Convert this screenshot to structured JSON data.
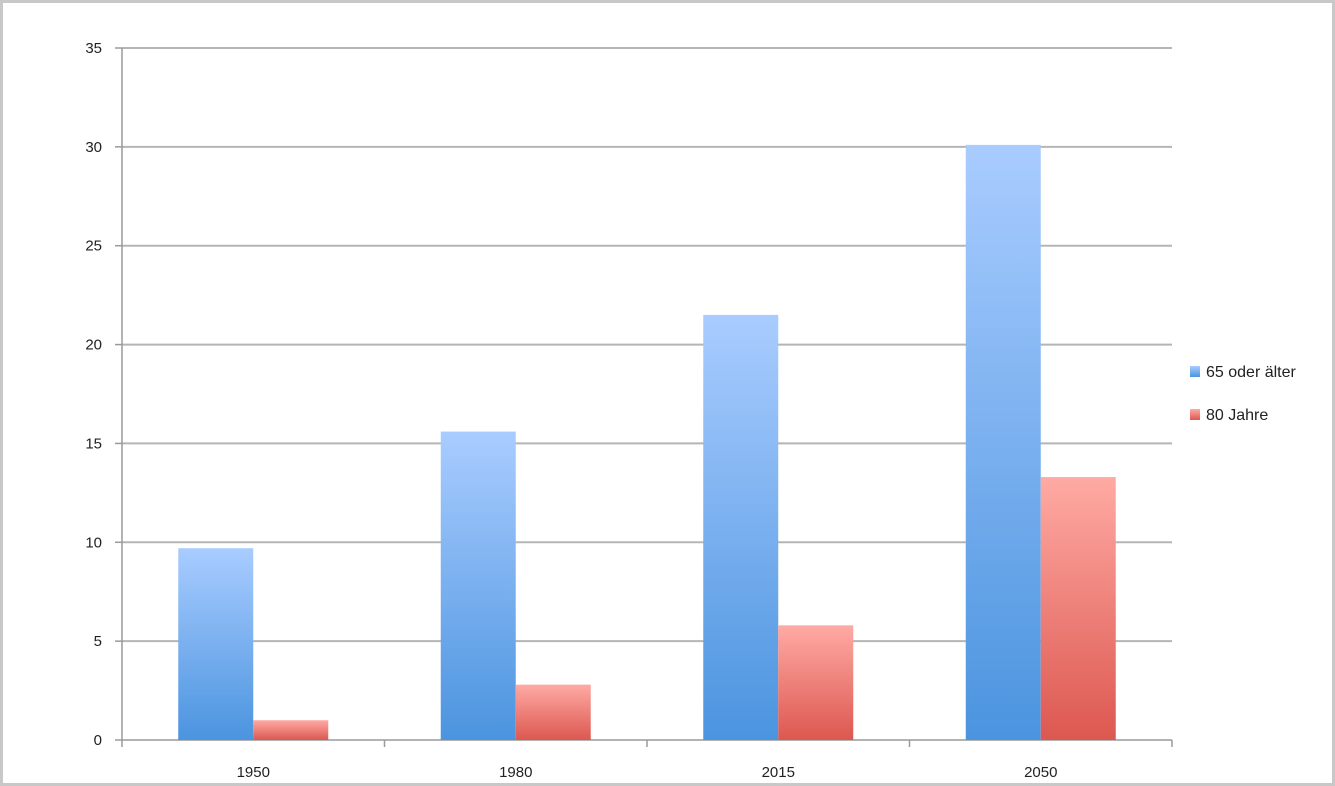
{
  "chart_data": {
    "type": "bar",
    "categories": [
      "1950",
      "1980",
      "2015",
      "2050"
    ],
    "series": [
      {
        "name": "65 oder älter",
        "values": [
          9.7,
          15.6,
          21.5,
          30.1
        ],
        "color": "#6ea6ec"
      },
      {
        "name": "80 Jahre",
        "values": [
          1.0,
          2.8,
          5.8,
          13.3
        ],
        "color": "#ec7b75"
      }
    ],
    "title": "",
    "xlabel": "",
    "ylabel": "",
    "ylim": [
      0,
      35
    ],
    "yticks": [
      "0",
      "5",
      "10",
      "15",
      "20",
      "25",
      "30",
      "35"
    ],
    "grid": true,
    "legend_position": "right"
  }
}
